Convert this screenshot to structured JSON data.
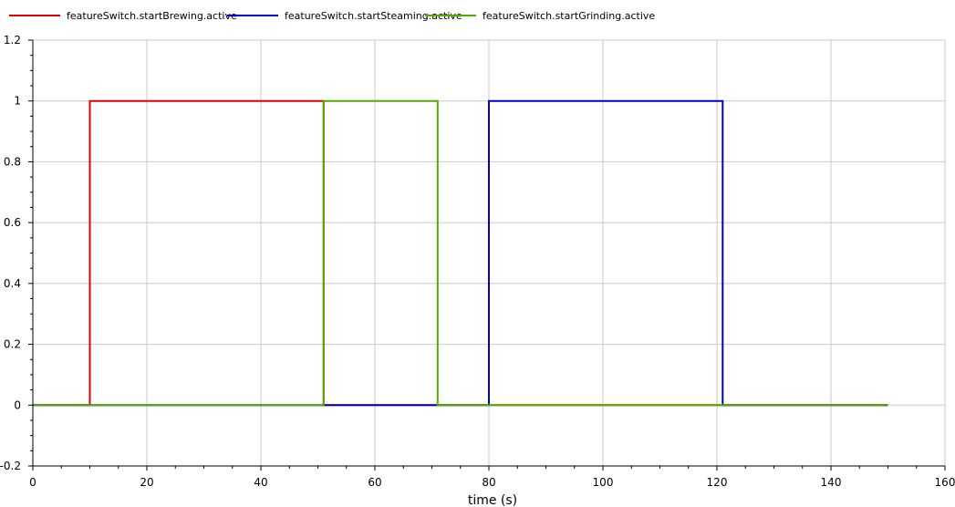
{
  "chart_data": {
    "type": "line",
    "step": true,
    "title": "",
    "xlabel": "time (s)",
    "ylabel": "",
    "xlim": [
      0,
      160
    ],
    "ylim": [
      -0.2,
      1.2
    ],
    "x_ticks": [
      0,
      20,
      40,
      60,
      80,
      100,
      120,
      140,
      160
    ],
    "y_ticks": [
      -0.2,
      0,
      0.2,
      0.4,
      0.6,
      0.8,
      1,
      1.2
    ],
    "x_tick_labels": [
      "0",
      "20",
      "40",
      "60",
      "80",
      "100",
      "120",
      "140",
      "160"
    ],
    "y_tick_labels": [
      "-0.2",
      "0",
      "0.2",
      "0.4",
      "0.6",
      "0.8",
      "1",
      "1.2"
    ],
    "grid": true,
    "legend_position": "top",
    "series": [
      {
        "name": "featureSwitch.startBrewing.active",
        "color": "#dd0000",
        "x": [
          0,
          10,
          10,
          51,
          51,
          150
        ],
        "y": [
          0,
          0,
          1,
          1,
          0,
          0
        ]
      },
      {
        "name": "featureSwitch.startSteaming.active",
        "color": "#0000cc",
        "x": [
          0,
          80,
          80,
          121,
          121,
          150
        ],
        "y": [
          0,
          0,
          1,
          1,
          0,
          0
        ]
      },
      {
        "name": "featureSwitch.startGrinding.active",
        "color": "#55aa00",
        "x": [
          0,
          51,
          51,
          71,
          71,
          150
        ],
        "y": [
          0,
          0,
          1,
          1,
          0,
          0
        ]
      }
    ]
  }
}
